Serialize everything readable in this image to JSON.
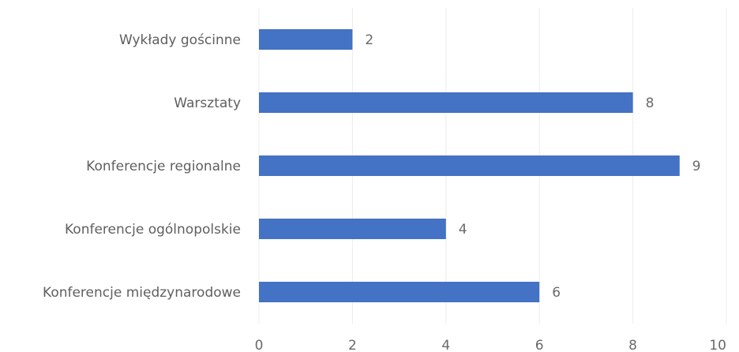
{
  "chart_data": {
    "type": "bar",
    "orientation": "horizontal",
    "categories": [
      "Wykłady gościnne",
      "Warsztaty",
      "Konferencje regionalne",
      "Konferencje ogólnopolskie",
      "Konferencje międzynarodowe"
    ],
    "values": [
      2,
      8,
      9,
      4,
      6
    ],
    "xlim": [
      0,
      10
    ],
    "x_ticks": [
      "0",
      "2",
      "4",
      "6",
      "8",
      "10"
    ],
    "title": "",
    "xlabel": "",
    "ylabel": "",
    "grid": true,
    "legend": "none",
    "bar_color": "#4472C4"
  }
}
